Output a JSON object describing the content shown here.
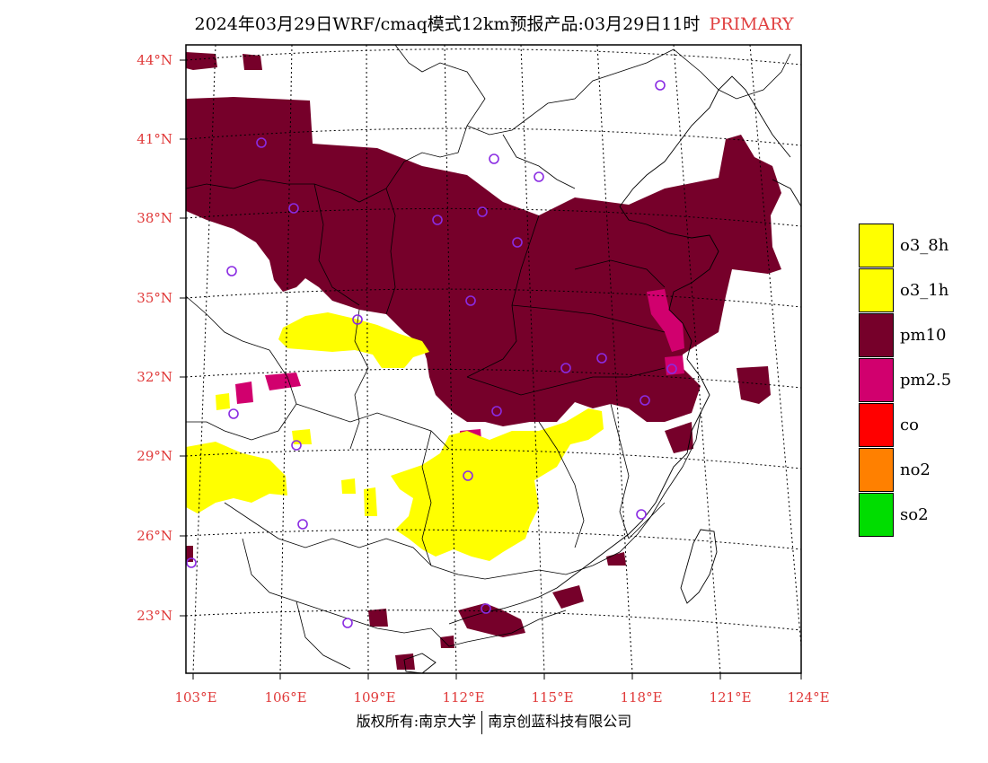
{
  "title": {
    "text": "2024年03月29日WRF/cmaq模式12km预报产品:03月29日11时",
    "tag": "PRIMARY",
    "tag_color": "#e04040"
  },
  "axes": {
    "lat_labels": [
      "44°N",
      "41°N",
      "38°N",
      "35°N",
      "32°N",
      "29°N",
      "26°N",
      "23°N"
    ],
    "lon_labels": [
      "103°E",
      "106°E",
      "109°E",
      "112°E",
      "115°E",
      "118°E",
      "121°E",
      "124°E"
    ],
    "label_color": "#e03a3a"
  },
  "legend": {
    "items": [
      {
        "label": "o3_8h",
        "color": "#ffff00"
      },
      {
        "label": "o3_1h",
        "color": "#ffff00"
      },
      {
        "label": "pm10",
        "color": "#76002a"
      },
      {
        "label": "pm2.5",
        "color": "#d1006e"
      },
      {
        "label": "co",
        "color": "#ff0000"
      },
      {
        "label": "no2",
        "color": "#ff8000"
      },
      {
        "label": "so2",
        "color": "#00dd00"
      }
    ]
  },
  "map_colors": {
    "pm10": "#76002a",
    "pm25": "#d1006e",
    "o3": "#ffff00",
    "station": "#8a2be2"
  },
  "footer": {
    "left": "版权所有:南京大学",
    "right": "南京创蓝科技有限公司"
  }
}
